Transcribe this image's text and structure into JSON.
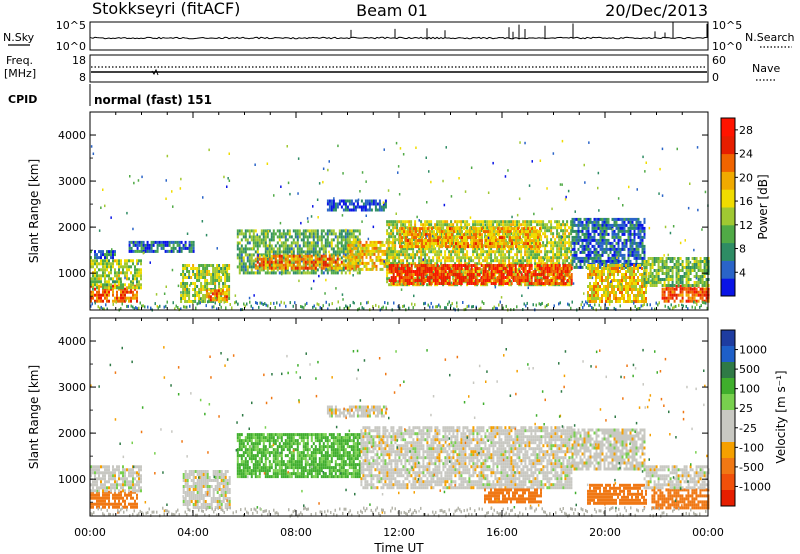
{
  "header": {
    "station": "Stokkseyri (fitACF)",
    "beam": "Beam 01",
    "date": "20/Dec/2013"
  },
  "status_panels": {
    "nsky_label": "N.Sky",
    "nsearch_label": "N.Search",
    "noise_ticks": [
      "10^5",
      "10^0"
    ],
    "freq_label_line1": "Freq.",
    "freq_label_line2": "[MHz]",
    "freq_ticks": [
      "18",
      "8"
    ],
    "nave_label": "Nave",
    "nave_ticks": [
      "60",
      "0"
    ],
    "cpid_label": "CPID",
    "cpid_text": "normal (fast) 151"
  },
  "colors": {
    "power_scale": [
      "#0a14e6",
      "#2a64c8",
      "#2e8c64",
      "#50aa46",
      "#a0c832",
      "#f0dc00",
      "#f0aa00",
      "#f06400",
      "#e61e00",
      "#ff1400"
    ],
    "velocity_scale": [
      "#1e3ca0",
      "#1e5fc8",
      "#2f7a46",
      "#3fae2c",
      "#78d04e",
      "#c8c8c2",
      "#c8c8c2",
      "#f5a000",
      "#f07814",
      "#f0500a",
      "#e61e00"
    ],
    "ground_scatter": "#b4b4aa"
  },
  "chart_data": [
    {
      "type": "heatmap",
      "name": "power",
      "ylabel": "Slant Range [km]",
      "ylim": [
        200,
        4500
      ],
      "yticks": [
        "1000",
        "2000",
        "3000",
        "4000"
      ],
      "x_time_range": [
        "00:00",
        "24:00"
      ],
      "colorbar_label": "Power [dB]",
      "colorbar_ticks": [
        "4",
        "8",
        "12",
        "16",
        "20",
        "24",
        "28"
      ],
      "regions": [
        {
          "t0": 0.0,
          "t1": 1.8,
          "r0": 400,
          "r1": 750,
          "value": 24
        },
        {
          "t0": 0.0,
          "t1": 2.0,
          "r0": 700,
          "r1": 1300,
          "value": 14
        },
        {
          "t0": 0.0,
          "t1": 1.0,
          "r0": 1350,
          "r1": 1500,
          "value": 6
        },
        {
          "t0": 1.5,
          "t1": 4.0,
          "r0": 1450,
          "r1": 1700,
          "value": 6
        },
        {
          "t0": 3.5,
          "t1": 5.4,
          "r0": 400,
          "r1": 1200,
          "value": 14
        },
        {
          "t0": 4.5,
          "t1": 5.3,
          "r0": 400,
          "r1": 650,
          "value": 22
        },
        {
          "t0": 5.7,
          "t1": 10.5,
          "r0": 1000,
          "r1": 1950,
          "value": 11
        },
        {
          "t0": 6.4,
          "t1": 10.3,
          "r0": 1100,
          "r1": 1400,
          "value": 22
        },
        {
          "t0": 10.0,
          "t1": 11.8,
          "r0": 1100,
          "r1": 1700,
          "value": 18
        },
        {
          "t0": 11.5,
          "t1": 18.7,
          "r0": 750,
          "r1": 2150,
          "value": 15
        },
        {
          "t0": 11.6,
          "t1": 18.7,
          "r0": 800,
          "r1": 1200,
          "value": 26
        },
        {
          "t0": 12.0,
          "t1": 17.5,
          "r0": 1600,
          "r1": 2000,
          "value": 20
        },
        {
          "t0": 18.7,
          "t1": 21.5,
          "r0": 1150,
          "r1": 2200,
          "value": 6
        },
        {
          "t0": 19.3,
          "t1": 21.6,
          "r0": 400,
          "r1": 1200,
          "value": 18
        },
        {
          "t0": 22.2,
          "t1": 24.0,
          "r0": 400,
          "r1": 750,
          "value": 24
        },
        {
          "t0": 21.5,
          "t1": 24.0,
          "r0": 700,
          "r1": 1350,
          "value": 12
        },
        {
          "t0": 9.2,
          "t1": 11.5,
          "r0": 2400,
          "r1": 2600,
          "value": 5
        }
      ]
    },
    {
      "type": "heatmap",
      "name": "velocity",
      "ylabel": "Slant Range [km]",
      "ylim": [
        200,
        4500
      ],
      "yticks": [
        "1000",
        "2000",
        "3000",
        "4000"
      ],
      "xlabel": "Time UT",
      "xticks": [
        "00:00",
        "04:00",
        "08:00",
        "12:00",
        "16:00",
        "20:00",
        "00:00"
      ],
      "x_time_range": [
        "00:00",
        "24:00"
      ],
      "colorbar_label": "Velocity [m s⁻¹]",
      "colorbar_ticks": [
        "1000",
        "500",
        "100",
        "25",
        "-25",
        "-100",
        "-500",
        "-1000"
      ],
      "regions": [
        {
          "t0": 0.0,
          "t1": 1.8,
          "r0": 400,
          "r1": 750,
          "value": -350
        },
        {
          "t0": 0.0,
          "t1": 2.0,
          "r0": 750,
          "r1": 1300,
          "value": 0
        },
        {
          "t0": 3.6,
          "t1": 5.4,
          "r0": 400,
          "r1": 1200,
          "value": 0
        },
        {
          "t0": 5.7,
          "t1": 10.5,
          "r0": 1050,
          "r1": 2000,
          "value": 60
        },
        {
          "t0": 10.5,
          "t1": 18.7,
          "r0": 800,
          "r1": 2150,
          "value": 0
        },
        {
          "t0": 18.7,
          "t1": 21.5,
          "r0": 1250,
          "r1": 2100,
          "value": 0
        },
        {
          "t0": 19.3,
          "t1": 21.6,
          "r0": 450,
          "r1": 900,
          "value": -350
        },
        {
          "t0": 15.3,
          "t1": 17.5,
          "r0": 500,
          "r1": 800,
          "value": -350
        },
        {
          "t0": 21.8,
          "t1": 24.0,
          "r0": 400,
          "r1": 800,
          "value": -350
        },
        {
          "t0": 21.5,
          "t1": 24.0,
          "r0": 800,
          "r1": 1300,
          "value": 0
        },
        {
          "t0": 9.2,
          "t1": 11.5,
          "r0": 2400,
          "r1": 2600,
          "value": 0
        }
      ]
    }
  ]
}
